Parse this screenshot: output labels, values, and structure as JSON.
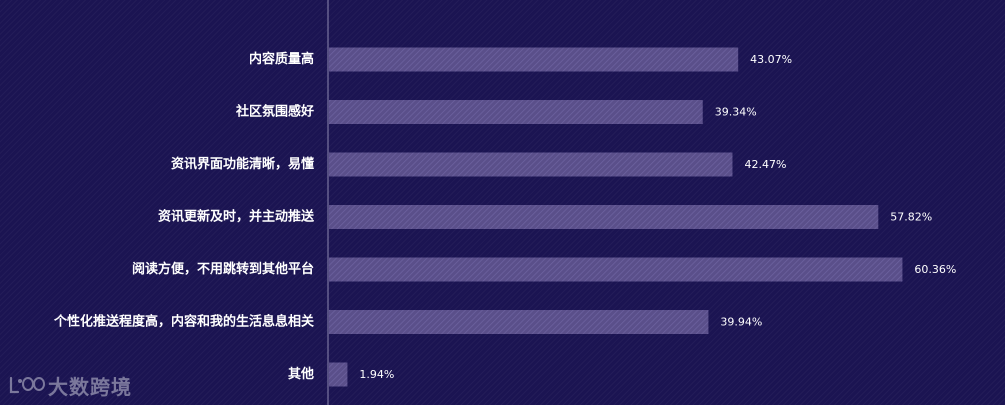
{
  "chart_data": {
    "type": "bar",
    "orientation": "horizontal",
    "categories": [
      "内容质量高",
      "社区氛围感好",
      "资讯界面功能清晰，易懂",
      "资讯更新及时，并主动推送",
      "阅读方便，不用跳转到其他平台",
      "个性化推送程度高，内容和我的生活息息相关",
      "其他"
    ],
    "values": [
      43.07,
      39.34,
      42.47,
      57.82,
      60.36,
      39.94,
      1.94
    ],
    "value_labels": [
      "43.07%",
      "39.34%",
      "42.47%",
      "57.82%",
      "60.36%",
      "39.94%",
      "1.94%"
    ],
    "xlim": [
      0,
      62
    ],
    "grid": false,
    "colors": {
      "background": "#1b1452",
      "bar": "#5a4f8a",
      "bar_hatch": "#6d63a0",
      "axis": "#8d89b0",
      "text": "#ffffff"
    }
  },
  "watermark": {
    "text": "大数跨境",
    "icon": "brand-logo-icon"
  }
}
